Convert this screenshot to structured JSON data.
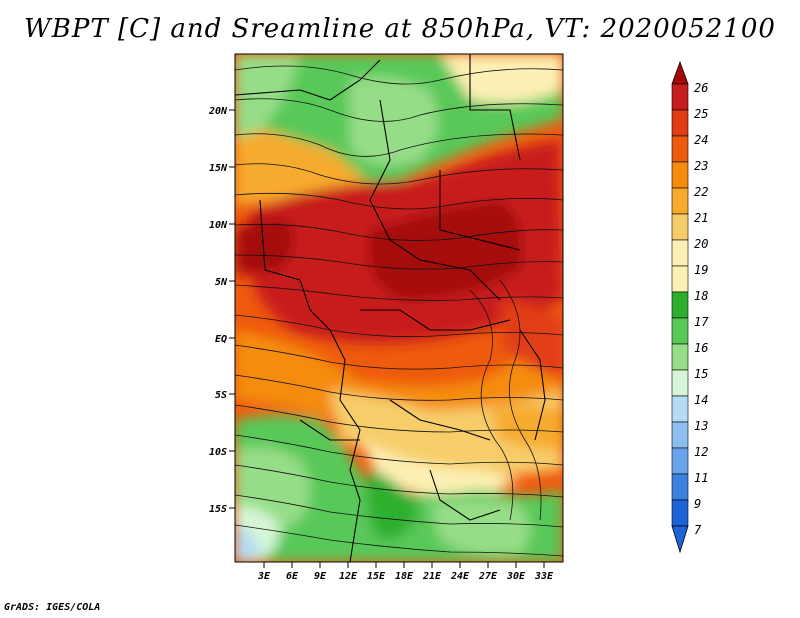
{
  "title": "WBPT [C] and Sreamline at 850hPa, VT: 2020052100",
  "credit": "GrADS: IGES/COLA",
  "map": {
    "lat_labels": [
      "20N",
      "15N",
      "10N",
      "5N",
      "EQ",
      "5S",
      "10S",
      "15S"
    ],
    "lon_labels": [
      "3E",
      "6E",
      "9E",
      "12E",
      "15E",
      "18E",
      "21E",
      "24E",
      "27E",
      "30E",
      "33E"
    ]
  },
  "colorbar": {
    "labels": [
      "26",
      "25",
      "24",
      "23",
      "22",
      "21",
      "20",
      "19",
      "18",
      "17",
      "16",
      "15",
      "14",
      "13",
      "12",
      "11",
      "9",
      "7"
    ],
    "colors": [
      "#a50a0a",
      "#c81e1e",
      "#e13c14",
      "#ee5a0e",
      "#f58c0c",
      "#f7ab2e",
      "#f7cd6a",
      "#fdf0b4",
      "#2eaf2e",
      "#58c858",
      "#96dd87",
      "#d7f6d7",
      "#b4dcf5",
      "#8cbeee",
      "#6aa3ea",
      "#3d81e1",
      "#1d62d6"
    ]
  }
}
